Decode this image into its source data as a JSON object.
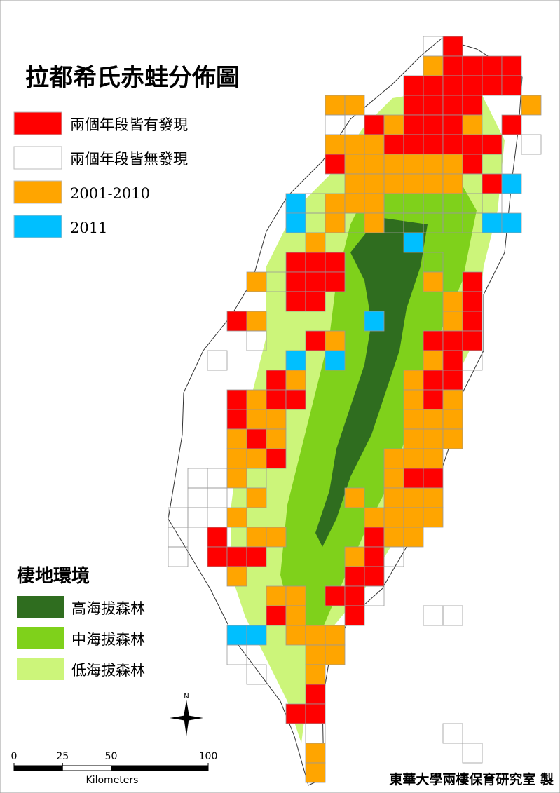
{
  "title": "拉都希氏赤蛙分佈圖",
  "legend": [
    {
      "label": "兩個年段皆有發現",
      "color": "#ff0000"
    },
    {
      "label": "兩個年段皆無發現",
      "color": "#ffffff"
    },
    {
      "label": "2001-2010",
      "color": "#ffa500"
    },
    {
      "label": "2011",
      "color": "#00bfff"
    }
  ],
  "habitat": {
    "title": "棲地環境",
    "items": [
      {
        "label": "高海拔森林",
        "color": "#2f6d1f"
      },
      {
        "label": "中海拔森林",
        "color": "#7fd11b"
      },
      {
        "label": "低海拔森林",
        "color": "#ccf57a"
      }
    ]
  },
  "scale_bar": {
    "ticks": [
      0,
      25,
      50,
      100
    ],
    "unit": "Kilometers"
  },
  "north": "N",
  "credit": "東華大學兩棲保育研究室 製"
}
